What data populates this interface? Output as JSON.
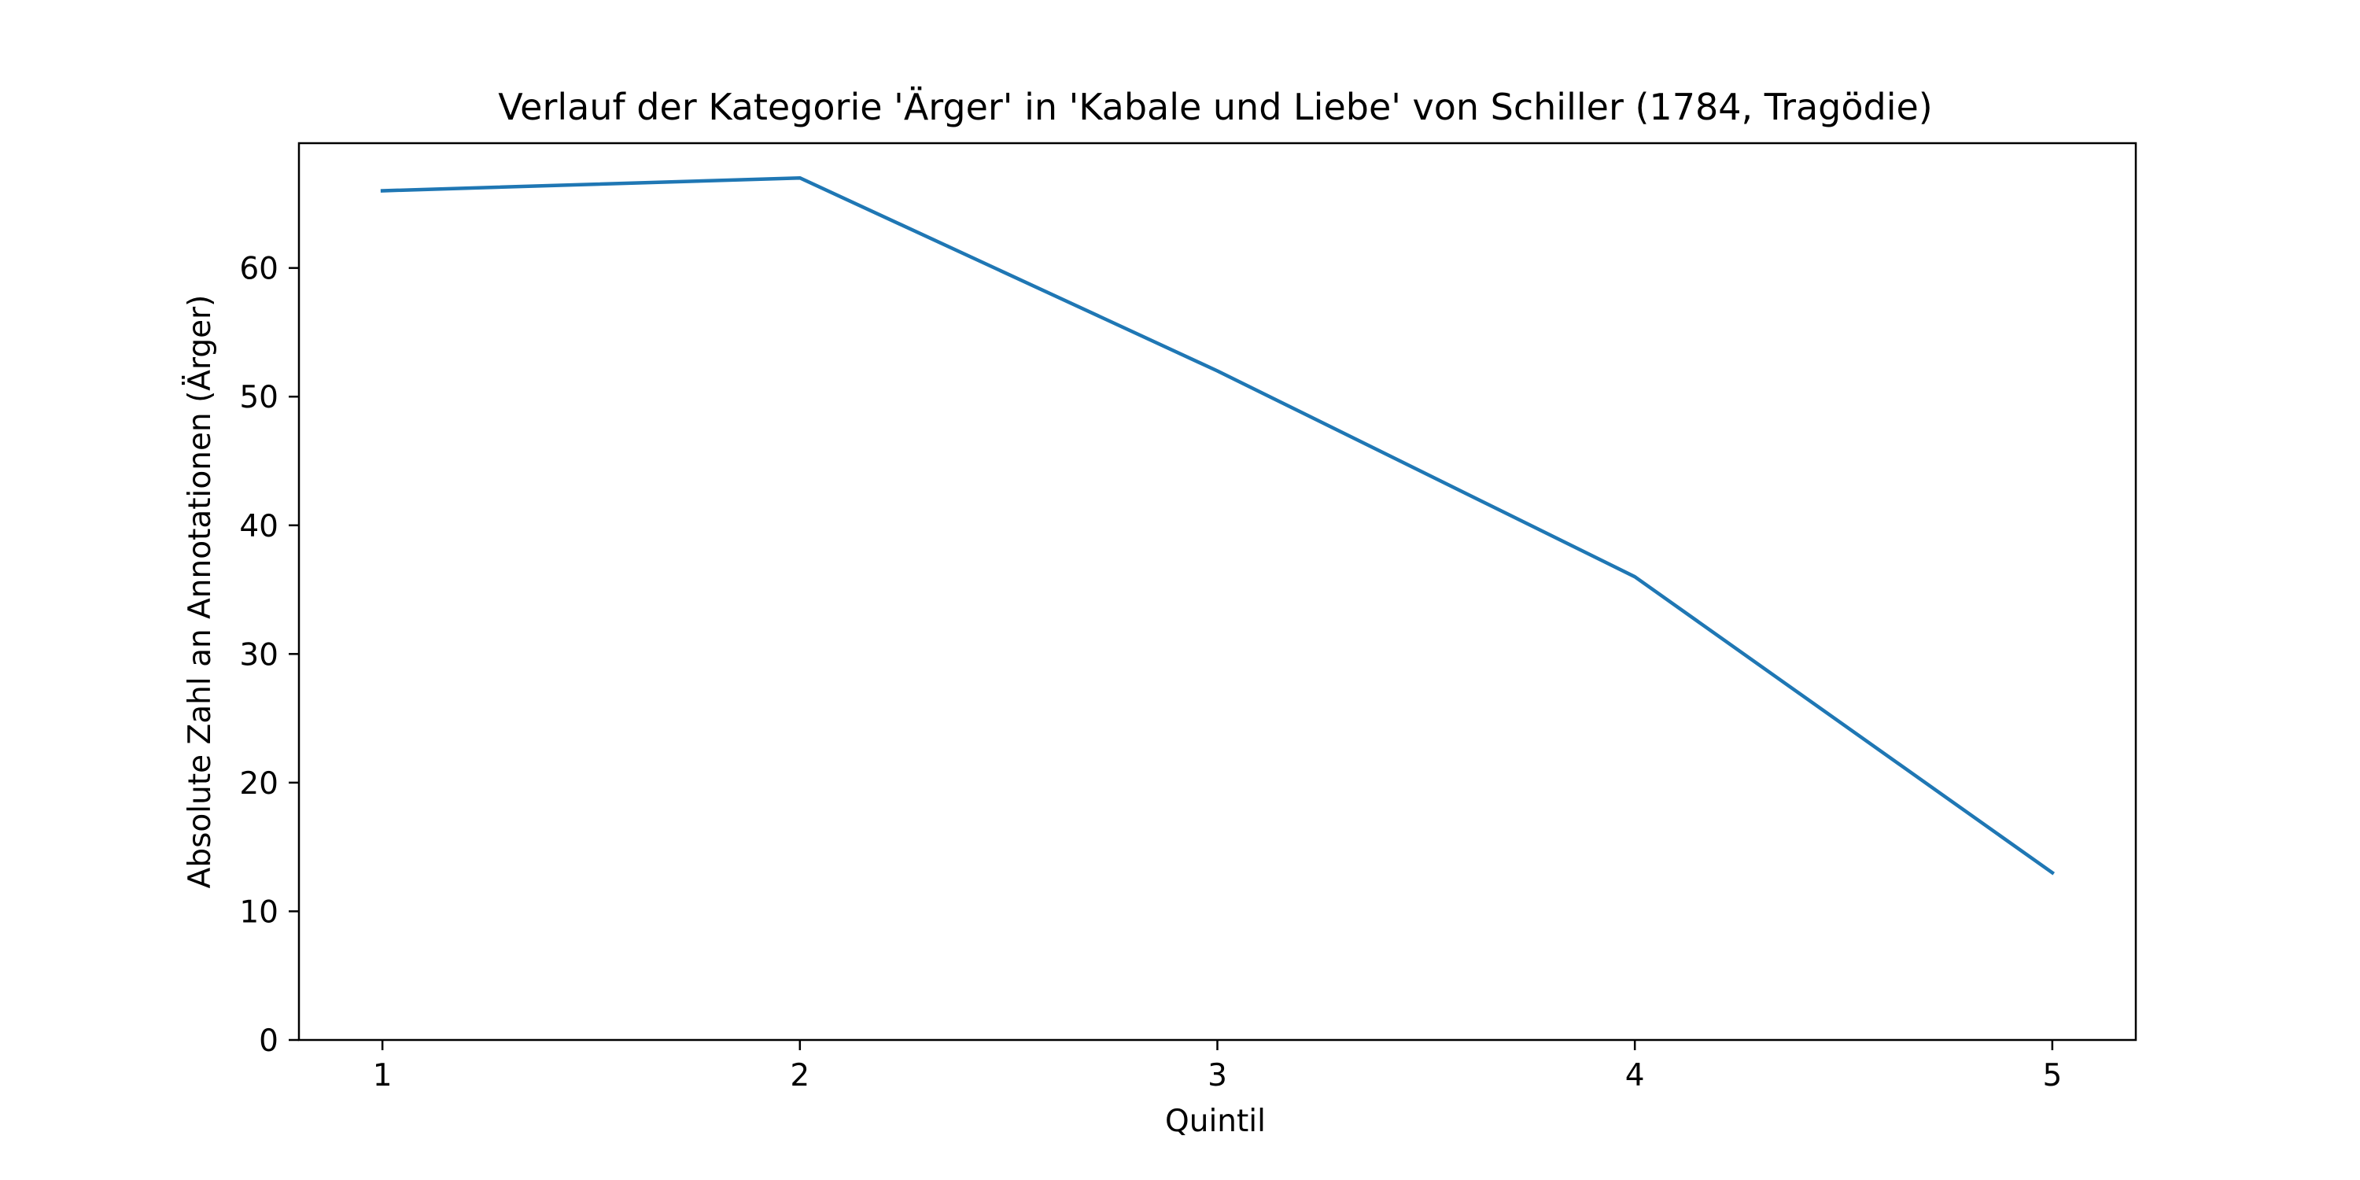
{
  "chart_data": {
    "type": "line",
    "title": "Verlauf der Kategorie 'Ärger' in 'Kabale und Liebe' von Schiller (1784, Tragödie)",
    "xlabel": "Quintil",
    "ylabel": "Absolute Zahl an Annotationen (Ärger)",
    "x": [
      1,
      2,
      3,
      4,
      5
    ],
    "series": [
      {
        "values": [
          66,
          67,
          52,
          36,
          13
        ],
        "color": "#1f77b4"
      }
    ],
    "xlim": [
      0.8,
      5.2
    ],
    "ylim": [
      0,
      69.7
    ],
    "xticks": [
      1,
      2,
      3,
      4,
      5
    ],
    "yticks": [
      0,
      10,
      20,
      30,
      40,
      50,
      60
    ],
    "grid": false,
    "legend": "none"
  }
}
